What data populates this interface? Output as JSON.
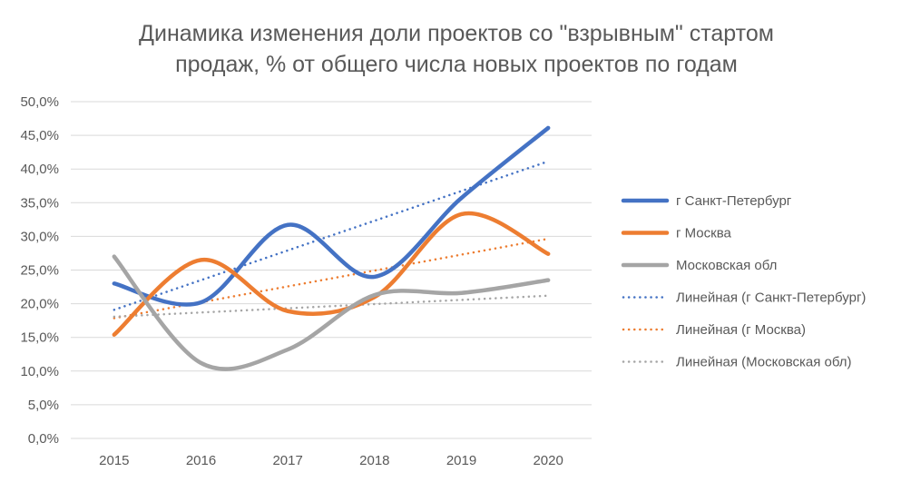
{
  "chart_data": {
    "type": "line",
    "title_lines": [
      "Динамика изменения доли проектов со \"взрывным\" стартом",
      "продаж, % от общего числа новых проектов по годам"
    ],
    "categories": [
      "2015",
      "2016",
      "2017",
      "2018",
      "2019",
      "2020"
    ],
    "ylim": [
      0,
      50
    ],
    "yticks": [
      "0,0%",
      "5,0%",
      "10,0%",
      "15,0%",
      "20,0%",
      "25,0%",
      "30,0%",
      "35,0%",
      "40,0%",
      "45,0%",
      "50,0%"
    ],
    "grid": true,
    "legend_position": "right",
    "series": [
      {
        "name": "г Санкт-Петербург",
        "color": "#4472C4",
        "values": [
          23.0,
          20.2,
          31.7,
          24.0,
          35.7,
          46.1
        ]
      },
      {
        "name": "г Москва",
        "color": "#ED7D31",
        "values": [
          15.4,
          26.5,
          18.9,
          21.0,
          33.3,
          27.4
        ]
      },
      {
        "name": "Московская обл",
        "color": "#A5A5A5",
        "values": [
          27.0,
          11.2,
          13.2,
          21.3,
          21.6,
          23.5
        ]
      }
    ],
    "trendlines": [
      {
        "name": "Линейная (г Санкт-Петербург)",
        "color": "#4472C4",
        "of": 0
      },
      {
        "name": "Линейная (г Москва)",
        "color": "#ED7D31",
        "of": 1
      },
      {
        "name": "Линейная (Московская обл)",
        "color": "#A5A5A5",
        "of": 2
      }
    ]
  }
}
